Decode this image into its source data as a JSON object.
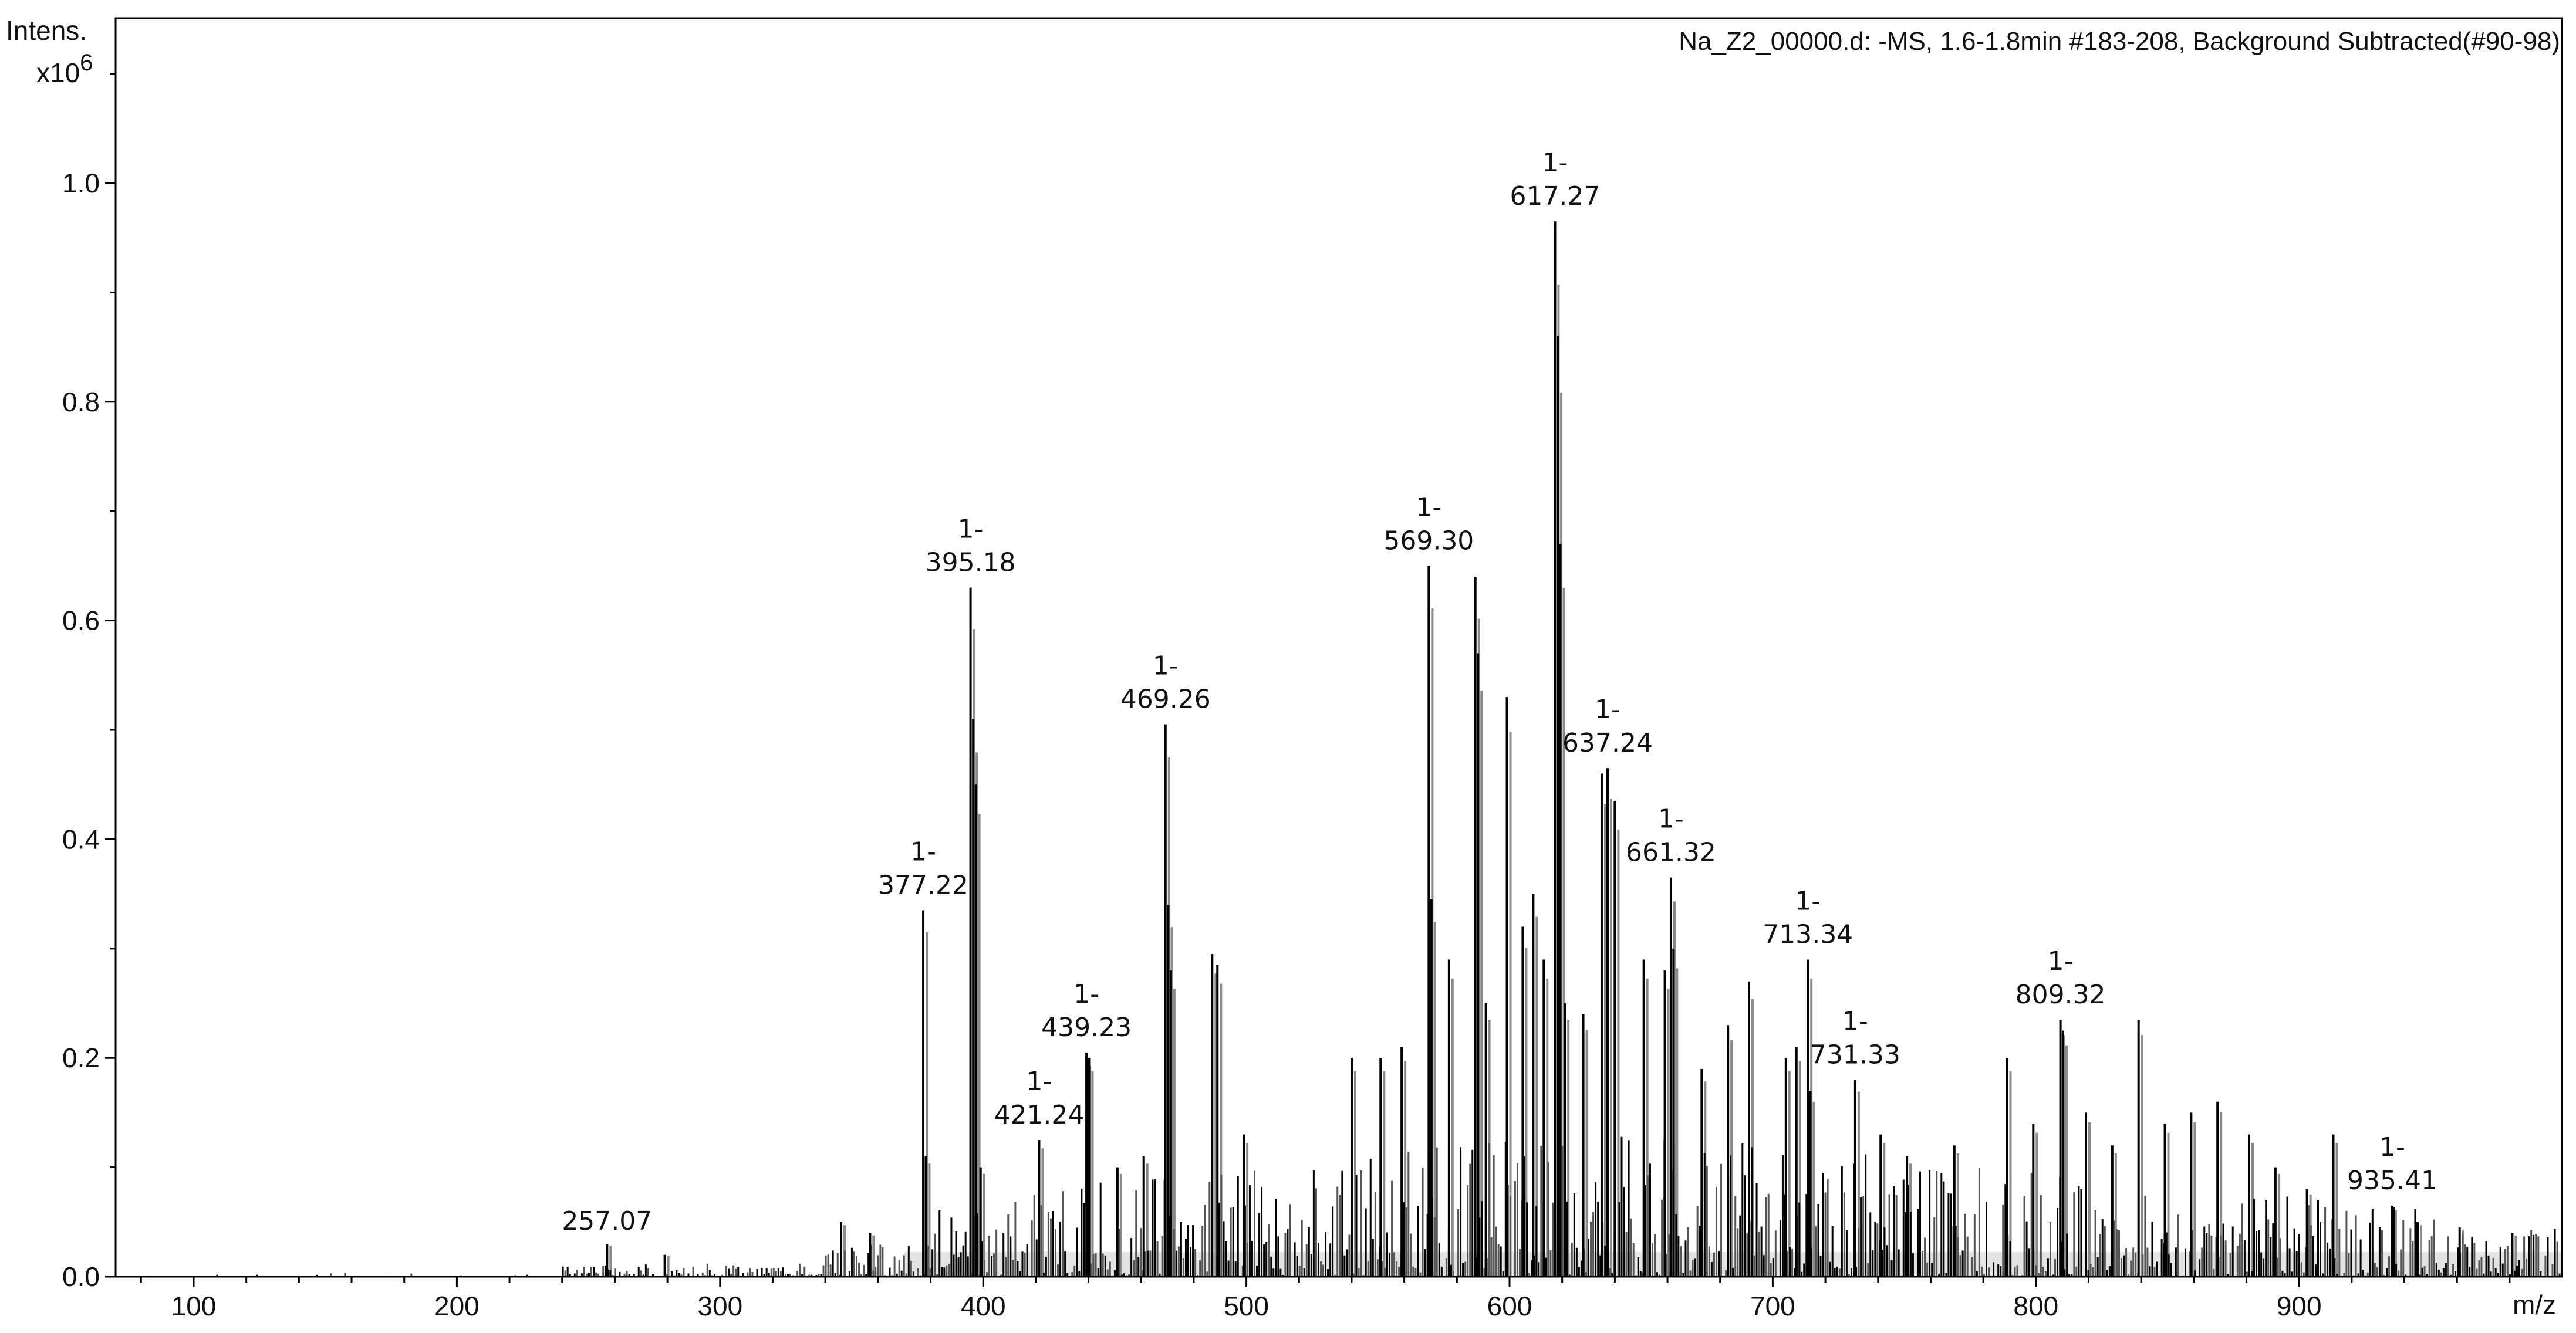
{
  "header": {
    "ylabel_line1": "Intens.",
    "ylabel_exponent_base": "x10",
    "ylabel_exponent": "6",
    "info": "Na_Z2_00000.d: -MS, 1.6-1.8min #183-208, Background Subtracted(#90-98)",
    "xlabel": "m/z"
  },
  "chart_data": {
    "type": "line",
    "title": "",
    "info": "Na_Z2_00000.d: -MS, 1.6-1.8min #183-208, Background Subtracted(#90-98)",
    "xlabel": "m/z",
    "ylabel": "Intens.",
    "y_multiplier": "x10^6",
    "xlim": [
      70,
      1000
    ],
    "ylim": [
      0,
      1.15
    ],
    "x_ticks": [
      100,
      200,
      300,
      400,
      500,
      600,
      700,
      800,
      900
    ],
    "x_tick_labels": [
      "100",
      "200",
      "300",
      "400",
      "500",
      "600",
      "700",
      "800",
      "900"
    ],
    "y_ticks": [
      0.0,
      0.2,
      0.4,
      0.6,
      0.8,
      1.0
    ],
    "y_tick_labels": [
      "0.0",
      "0.2",
      "0.4",
      "0.6",
      "0.8",
      "1.0"
    ],
    "grid": false,
    "legend": "none",
    "colors": {
      "spectrum": "#000000",
      "overlay": "#8a8a8a"
    },
    "series": [
      {
        "values_mz": [
          257.07,
          279.0,
          346.0,
          357.0,
          377.22,
          378.2,
          395.18,
          396.2,
          397.2,
          399.0,
          421.24,
          439.23,
          440.2,
          451.0,
          461.0,
          469.26,
          470.3,
          471.3,
          487.0,
          489.0,
          499.0,
          540.0,
          551.0,
          559.0,
          569.3,
          570.3,
          577.0,
          587.0,
          588.0,
          591.0,
          599.0,
          605.0,
          609.0,
          613.0,
          617.27,
          618.3,
          619.3,
          621.0,
          628.0,
          635.0,
          637.24,
          640.0,
          651.0,
          659.0,
          661.32,
          662.3,
          673.0,
          683.0,
          691.0,
          705.0,
          709.0,
          713.34,
          714.3,
          731.33,
          741.0,
          751.0,
          769.0,
          789.0,
          799.0,
          809.32,
          810.3,
          819.0,
          829.0,
          839.0,
          849.0,
          859.0,
          869.0,
          881.0,
          891.0,
          903.0,
          913.0,
          935.41,
          945.0,
          961.0,
          981.0
        ],
        "values_intensity": [
          0.03,
          0.02,
          0.05,
          0.04,
          0.335,
          0.11,
          0.63,
          0.51,
          0.45,
          0.1,
          0.125,
          0.205,
          0.2,
          0.1,
          0.11,
          0.505,
          0.34,
          0.28,
          0.295,
          0.285,
          0.13,
          0.2,
          0.2,
          0.21,
          0.65,
          0.345,
          0.29,
          0.64,
          0.57,
          0.25,
          0.53,
          0.32,
          0.35,
          0.29,
          0.965,
          0.86,
          0.67,
          0.25,
          0.24,
          0.46,
          0.465,
          0.435,
          0.29,
          0.28,
          0.365,
          0.3,
          0.19,
          0.23,
          0.27,
          0.2,
          0.21,
          0.29,
          0.17,
          0.18,
          0.13,
          0.11,
          0.12,
          0.2,
          0.14,
          0.235,
          0.225,
          0.15,
          0.12,
          0.235,
          0.14,
          0.15,
          0.16,
          0.13,
          0.1,
          0.08,
          0.13,
          0.065,
          0.05,
          0.045,
          0.04
        ]
      }
    ],
    "annotations": [
      {
        "x": 257.07,
        "y": 0.03,
        "charge": "",
        "label": "257.07"
      },
      {
        "x": 377.22,
        "y": 0.335,
        "charge": "1-",
        "label": "377.22"
      },
      {
        "x": 395.18,
        "y": 0.63,
        "charge": "1-",
        "label": "395.18"
      },
      {
        "x": 421.24,
        "y": 0.125,
        "charge": "1-",
        "label": "421.24"
      },
      {
        "x": 439.23,
        "y": 0.205,
        "charge": "1-",
        "label": "439.23"
      },
      {
        "x": 469.26,
        "y": 0.505,
        "charge": "1-",
        "label": "469.26"
      },
      {
        "x": 569.3,
        "y": 0.65,
        "charge": "1-",
        "label": "569.30"
      },
      {
        "x": 617.27,
        "y": 0.965,
        "charge": "1-",
        "label": "617.27"
      },
      {
        "x": 637.24,
        "y": 0.465,
        "charge": "1-",
        "label": "637.24"
      },
      {
        "x": 661.32,
        "y": 0.365,
        "charge": "1-",
        "label": "661.32"
      },
      {
        "x": 713.34,
        "y": 0.29,
        "charge": "1-",
        "label": "713.34"
      },
      {
        "x": 731.33,
        "y": 0.18,
        "charge": "1-",
        "label": "731.33"
      },
      {
        "x": 809.32,
        "y": 0.235,
        "charge": "1-",
        "label": "809.32"
      },
      {
        "x": 935.41,
        "y": 0.065,
        "charge": "1-",
        "label": "935.41"
      }
    ]
  }
}
